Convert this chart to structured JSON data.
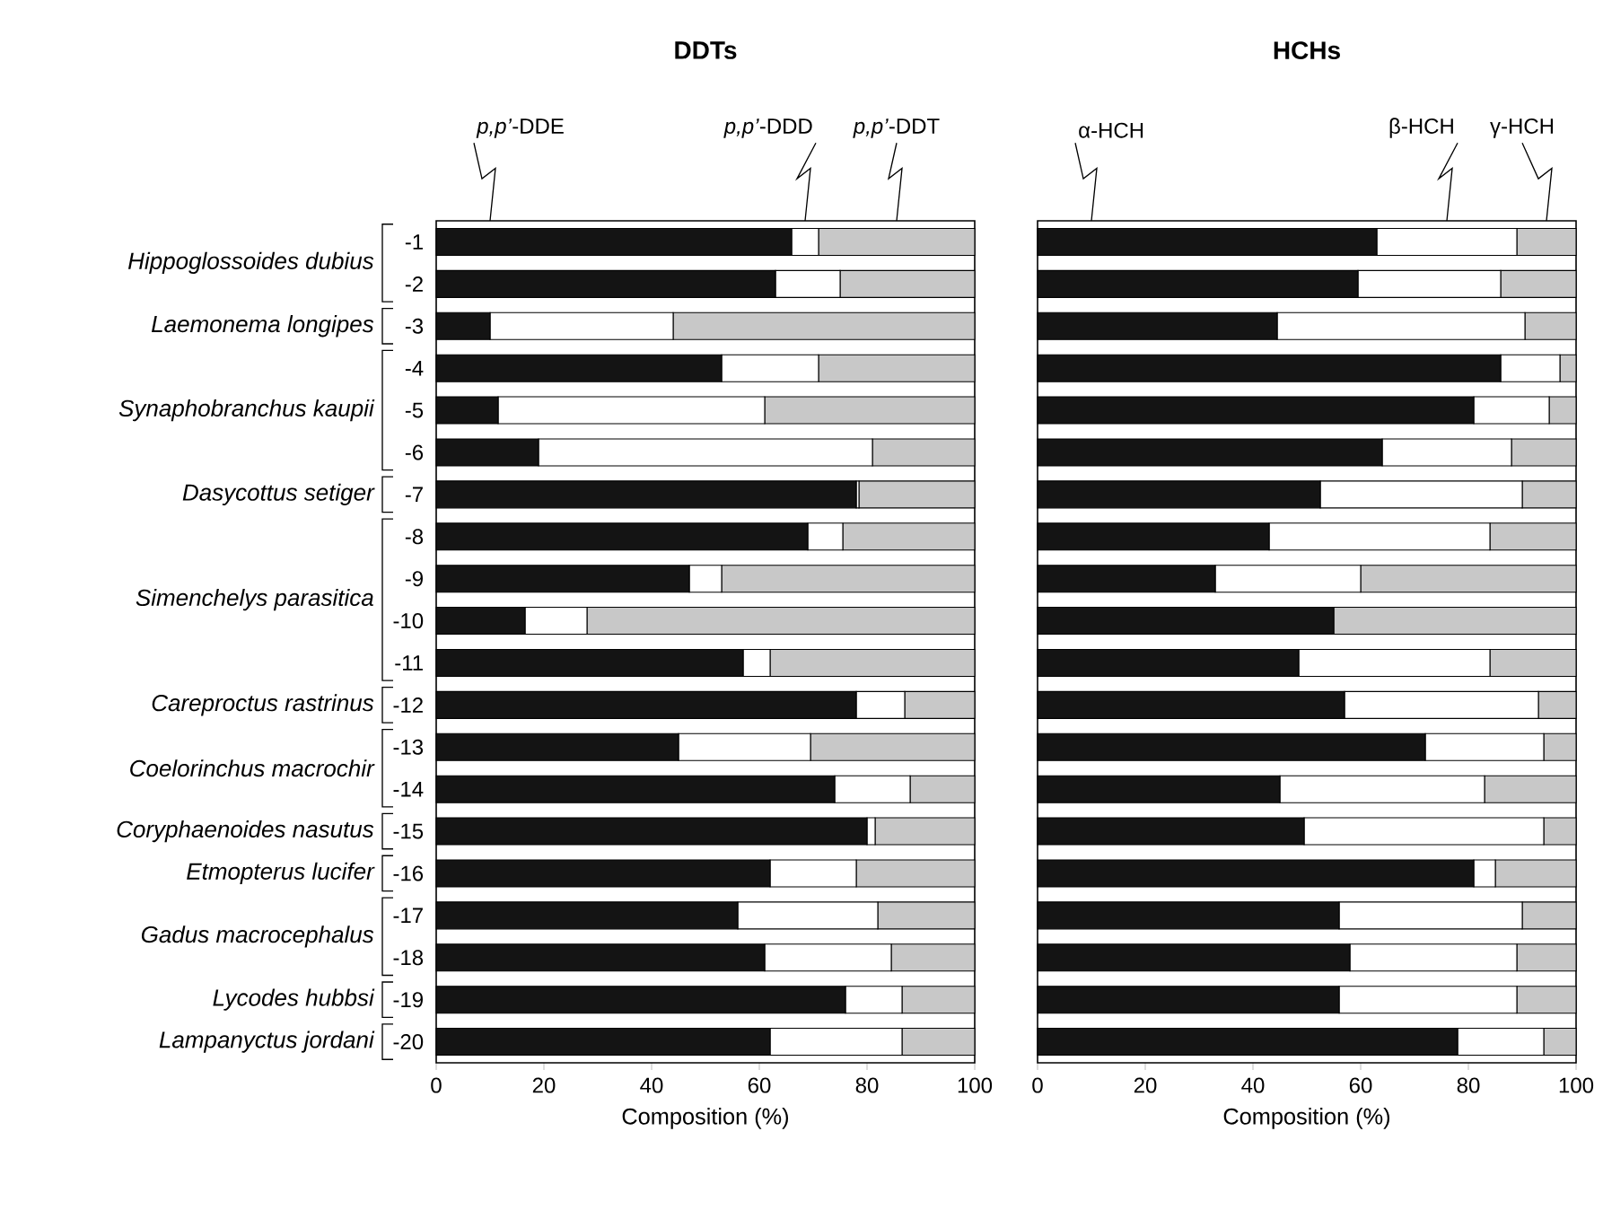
{
  "chart_data": [
    {
      "type": "bar",
      "title": "DDTs",
      "xlabel": "Composition (%)",
      "orientation": "horizontal",
      "stacked": true,
      "legend": false,
      "categories": [
        "-1",
        "-2",
        "-3",
        "-4",
        "-5",
        "-6",
        "-7",
        "-8",
        "-9",
        "-10",
        "-11",
        "-12",
        "-13",
        "-14",
        "-15",
        "-16",
        "-17",
        "-18",
        "-19",
        "-20"
      ],
      "series": [
        {
          "name": "*p,p’*-DDE",
          "color": "#141414",
          "values": [
            66,
            63,
            10,
            53,
            11.5,
            19,
            78,
            69,
            47,
            16.5,
            57,
            78,
            45,
            74,
            80,
            62,
            56,
            61,
            76,
            62
          ]
        },
        {
          "name": "*p,p’*-DDD",
          "color": "#ffffff",
          "values": [
            5,
            12,
            34,
            18,
            49.5,
            62,
            0.5,
            6.5,
            6,
            11.5,
            5,
            9,
            24.5,
            14,
            1.5,
            16,
            26,
            23.5,
            10.5,
            24.5
          ]
        },
        {
          "name": "*p,p’*-DDT",
          "color": "#c8c8c8",
          "values": [
            29,
            25,
            56,
            29,
            39,
            19,
            21.5,
            24.5,
            47,
            72,
            38,
            13,
            30.5,
            12,
            18.5,
            22,
            18,
            15.5,
            13.5,
            13.5
          ]
        }
      ],
      "xlim": [
        0,
        100
      ],
      "xticks": [
        0,
        20,
        40,
        60,
        80,
        100
      ],
      "annotations": [
        "Hippoglossoides dubius",
        "Laemonema longipes",
        "Synaphobranchus kaupii",
        "Dasycottus setiger",
        "Simenchelys parasitica",
        "Careproctus rastrinus",
        "Coelorinchus macrochir",
        "Coryphaenoides nasutus",
        "Etmopterus lucifer",
        "Gadus macrocephalus",
        "Lycodes hubbsi",
        "Lampanyctus jordani"
      ]
    },
    {
      "type": "bar",
      "title": "HCHs",
      "xlabel": "Composition (%)",
      "orientation": "horizontal",
      "stacked": true,
      "legend": false,
      "tick_labels": "x",
      "categories": [
        "-1",
        "-2",
        "-3",
        "-4",
        "-5",
        "-6",
        "-7",
        "-8",
        "-9",
        "-10",
        "-11",
        "-12",
        "-13",
        "-14",
        "-15",
        "-16",
        "-17",
        "-18",
        "-19",
        "-20"
      ],
      "series": [
        {
          "name": "α-HCH",
          "color": "#141414",
          "values": [
            63,
            59.5,
            44.5,
            86,
            81,
            64,
            52.5,
            43,
            33,
            55,
            48.5,
            57,
            72,
            45,
            49.5,
            81,
            56,
            58,
            56,
            78
          ]
        },
        {
          "name": "β-HCH",
          "color": "#ffffff",
          "values": [
            26,
            26.5,
            46,
            11,
            14,
            24,
            37.5,
            41,
            27,
            0,
            35.5,
            36,
            22,
            38,
            44.5,
            4,
            34,
            31,
            33,
            16
          ]
        },
        {
          "name": "γ-HCH",
          "color": "#c8c8c8",
          "values": [
            11,
            14,
            9.5,
            3,
            5,
            12,
            10,
            16,
            40,
            45,
            16,
            7,
            6,
            17,
            6,
            15,
            10,
            11,
            11,
            6
          ]
        }
      ],
      "xlim": [
        0,
        100
      ],
      "xticks": [
        0,
        20,
        40,
        60,
        80,
        100
      ]
    }
  ]
}
